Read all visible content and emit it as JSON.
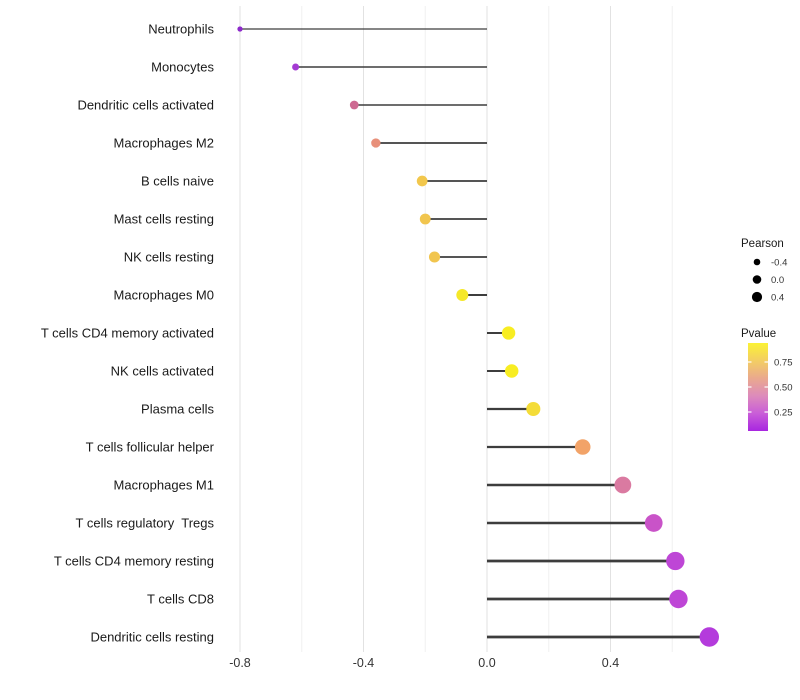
{
  "figure": {
    "background": "#ffffff",
    "text_color": "#1a1a1a",
    "tick_label_color": "#333333",
    "gridline_major_color": "#e2e2e2",
    "gridline_minor_color": "#f0f0f0",
    "stem_color": "#3d3d3d"
  },
  "chart_data": {
    "type": "scatter",
    "subtype": "horizontal-lollipop",
    "title": "",
    "xlabel": "",
    "ylabel": "",
    "xlim": [
      -0.88,
      0.8
    ],
    "baseline_x": 0,
    "grid": "vertical major and minor gridlines, light grey on white, no axis lines, no ticks",
    "x_ticks": {
      "major": [
        -0.8,
        -0.4,
        0.0,
        0.4
      ],
      "major_labels": [
        "-0.8",
        "-0.4",
        "0.0",
        "0.4"
      ],
      "minor": [
        -0.6,
        -0.2,
        0.2,
        0.6
      ]
    },
    "categories": [
      "Neutrophils",
      "Monocytes",
      "Dendritic cells activated",
      "Macrophages M2",
      "B cells naive",
      "Mast cells resting",
      "NK cells resting",
      "Macrophages M0",
      "T cells CD4 memory activated",
      "NK cells activated",
      "Plasma cells",
      "T cells follicular helper",
      "Macrophages M1",
      "T cells regulatory  Tregs",
      "T cells CD4 memory resting",
      "T cells CD8",
      "Dendritic cells resting"
    ],
    "points": [
      {
        "category": "Neutrophils",
        "pearson": -0.8,
        "dot_color": "#8d2acb"
      },
      {
        "category": "Monocytes",
        "pearson": -0.62,
        "dot_color": "#a43bd3"
      },
      {
        "category": "Dendritic cells activated",
        "pearson": -0.43,
        "dot_color": "#ce6a92"
      },
      {
        "category": "Macrophages M2",
        "pearson": -0.36,
        "dot_color": "#e8907a"
      },
      {
        "category": "B cells naive",
        "pearson": -0.21,
        "dot_color": "#f2c74c"
      },
      {
        "category": "Mast cells resting",
        "pearson": -0.2,
        "dot_color": "#f1c54e"
      },
      {
        "category": "NK cells resting",
        "pearson": -0.17,
        "dot_color": "#f1c54e"
      },
      {
        "category": "Macrophages M0",
        "pearson": -0.08,
        "dot_color": "#f5e829"
      },
      {
        "category": "T cells CD4 memory activated",
        "pearson": 0.07,
        "dot_color": "#f8ed22"
      },
      {
        "category": "NK cells activated",
        "pearson": 0.08,
        "dot_color": "#f8ed22"
      },
      {
        "category": "Plasma cells",
        "pearson": 0.15,
        "dot_color": "#f4dc38"
      },
      {
        "category": "T cells follicular helper",
        "pearson": 0.31,
        "dot_color": "#f2a368"
      },
      {
        "category": "Macrophages M1",
        "pearson": 0.44,
        "dot_color": "#da7aa1"
      },
      {
        "category": "T cells regulatory  Tregs",
        "pearson": 0.54,
        "dot_color": "#c953c8"
      },
      {
        "category": "T cells CD4 memory resting",
        "pearson": 0.61,
        "dot_color": "#be46d6"
      },
      {
        "category": "T cells CD8",
        "pearson": 0.62,
        "dot_color": "#be46d6"
      },
      {
        "category": "Dendritic cells resting",
        "pearson": 0.72,
        "dot_color": "#b43bdc"
      }
    ],
    "legend_position": "right",
    "legends": {
      "size": {
        "title": "Pearson",
        "dot_color": "#000000",
        "entries": [
          {
            "label": "-0.4",
            "value": -0.4,
            "radius": 3.3
          },
          {
            "label": "0.0",
            "value": 0.0,
            "radius": 4.3
          },
          {
            "label": "0.4",
            "value": 0.4,
            "radius": 5.1
          }
        ]
      },
      "color": {
        "title": "Pvalue",
        "tick_labels": [
          "0.75",
          "0.50",
          "0.25"
        ],
        "gradient_top_to_bottom": [
          "#fbf235",
          "#f3ce63",
          "#eaa98e",
          "#dd8bbb",
          "#c95dd8",
          "#a826e0"
        ]
      }
    }
  }
}
